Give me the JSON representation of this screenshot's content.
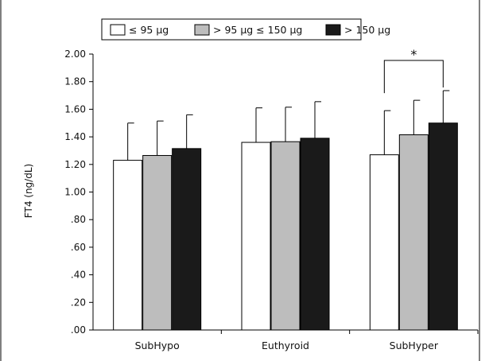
{
  "chart_data": {
    "type": "bar",
    "ylabel": "FT4 (ng/dL)",
    "xlabel": "",
    "ylim": [
      0,
      2.0
    ],
    "ytick_values": [
      0,
      0.2,
      0.4,
      0.6,
      0.8,
      1.0,
      1.2,
      1.4,
      1.6,
      1.8,
      2.0
    ],
    "ytick_labels": [
      ".00",
      ".20",
      ".40",
      ".60",
      ".80",
      "1.00",
      "1.20",
      "1.40",
      "1.60",
      "1.80",
      "2.00"
    ],
    "categories": [
      "SubHypo",
      "Euthyroid",
      "SubHyper"
    ],
    "series": [
      {
        "name": "≤ 95 µg",
        "color": "#ffffff",
        "values": [
          1.23,
          1.36,
          1.27
        ],
        "error": [
          0.27,
          0.25,
          0.32
        ]
      },
      {
        "name": "> 95 µg ≤ 150 µg",
        "color": "#bdbdbd",
        "values": [
          1.265,
          1.365,
          1.415
        ],
        "error": [
          0.25,
          0.25,
          0.25
        ]
      },
      {
        "name": "> 150 µg",
        "color": "#1a1a1a",
        "values": [
          1.315,
          1.39,
          1.5
        ],
        "error": [
          0.245,
          0.265,
          0.235
        ]
      }
    ],
    "grid": false,
    "legend_position": "top",
    "annotations": [
      {
        "text": "*",
        "category": "SubHyper",
        "from_series": 0,
        "to_series": 2
      }
    ]
  }
}
